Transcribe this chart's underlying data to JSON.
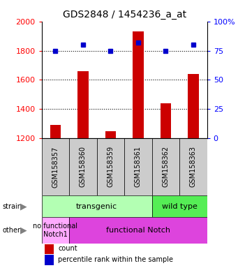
{
  "title": "GDS2848 / 1454236_a_at",
  "samples": [
    "GSM158357",
    "GSM158360",
    "GSM158359",
    "GSM158361",
    "GSM158362",
    "GSM158363"
  ],
  "counts": [
    1290,
    1660,
    1250,
    1930,
    1440,
    1640
  ],
  "percentiles": [
    75,
    80,
    75,
    82,
    75,
    80
  ],
  "ylim_left": [
    1200,
    2000
  ],
  "ylim_right": [
    0,
    100
  ],
  "yticks_left": [
    1200,
    1400,
    1600,
    1800,
    2000
  ],
  "yticks_right": [
    0,
    25,
    50,
    75,
    100
  ],
  "bar_color": "#cc0000",
  "dot_color": "#0000cc",
  "bar_width": 0.4,
  "strain_transgenic_indices": [
    0,
    1,
    2,
    3
  ],
  "strain_wildtype_indices": [
    4,
    5
  ],
  "other_nofunctional_indices": [
    0
  ],
  "other_functional_indices": [
    1,
    2,
    3,
    4,
    5
  ],
  "strain_transgenic_label": "transgenic",
  "strain_wildtype_label": "wild type",
  "other_nofunctional_label": "no functional\nNotch1",
  "other_functional_label": "functional Notch",
  "strain_transgenic_color": "#b3ffb3",
  "strain_wildtype_color": "#55ee55",
  "other_nofunctional_color": "#ffaaff",
  "other_functional_color": "#dd44dd",
  "sample_box_color": "#cccccc",
  "legend_count_label": "count",
  "legend_pct_label": "percentile rank within the sample",
  "grid_yticks": [
    1400,
    1600,
    1800
  ],
  "label_fontsize": 8,
  "tick_fontsize": 8,
  "sample_fontsize": 7,
  "title_fontsize": 10
}
